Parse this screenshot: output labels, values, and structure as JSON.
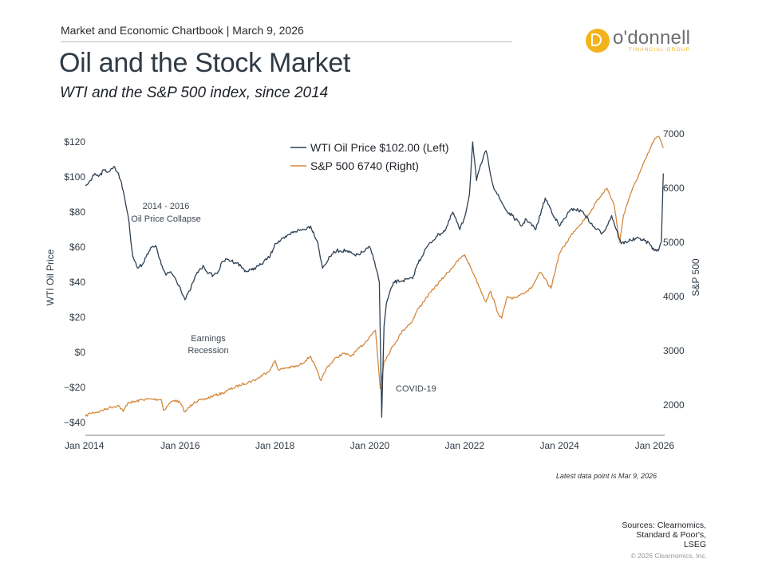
{
  "header": {
    "chartbook": "Market and Economic Chartbook | March 9, 2026",
    "title": "Oil and the Stock Market",
    "subtitle": "WTI and the S&P 500 index, since 2014"
  },
  "logo": {
    "name": "o'donnell",
    "tagline": "FINANCIAL GROUP",
    "brand_color": "#f3b31b"
  },
  "chart_data": {
    "type": "line",
    "title": "Oil and the Stock Market",
    "subtitle": "WTI and the S&P 500 index, since 2014",
    "xlabel": "",
    "x_ticks": [
      "Jan 2014",
      "Jan 2016",
      "Jan 2018",
      "Jan 2020",
      "Jan 2022",
      "Jan 2024",
      "Jan 2026"
    ],
    "x_range": [
      2014.0,
      2026.2
    ],
    "y_left": {
      "label": "WTI Oil Price",
      "ticks": [
        "$120",
        "$100",
        "$80",
        "$60",
        "$40",
        "$20",
        "$0",
        "−$20",
        "−$40"
      ],
      "tick_values": [
        120,
        100,
        80,
        60,
        40,
        20,
        0,
        -20,
        -40
      ],
      "range": [
        -40,
        120
      ]
    },
    "y_right": {
      "label": "S&P 500",
      "ticks": [
        "7000",
        "6000",
        "5000",
        "4000",
        "3000",
        "2000"
      ],
      "tick_values": [
        7000,
        6000,
        5000,
        4000,
        3000,
        2000
      ],
      "range": [
        1550,
        7000
      ]
    },
    "grid": false,
    "legend_position": "top-center",
    "series": [
      {
        "name": "WTI Oil Price $102.00 (Left)",
        "axis": "left",
        "color": "#2e4053",
        "x": [
          2014.0,
          2014.1,
          2014.2,
          2014.3,
          2014.4,
          2014.5,
          2014.6,
          2014.7,
          2014.8,
          2014.9,
          2015.0,
          2015.1,
          2015.2,
          2015.3,
          2015.4,
          2015.5,
          2015.6,
          2015.7,
          2015.8,
          2015.9,
          2016.0,
          2016.1,
          2016.2,
          2016.3,
          2016.4,
          2016.5,
          2016.6,
          2016.7,
          2016.8,
          2016.9,
          2017.0,
          2017.2,
          2017.4,
          2017.5,
          2017.7,
          2017.9,
          2018.0,
          2018.2,
          2018.4,
          2018.6,
          2018.75,
          2018.9,
          2019.0,
          2019.2,
          2019.3,
          2019.5,
          2019.7,
          2019.9,
          2020.0,
          2020.1,
          2020.2,
          2020.25,
          2020.3,
          2020.35,
          2020.5,
          2020.7,
          2020.9,
          2021.0,
          2021.2,
          2021.4,
          2021.6,
          2021.75,
          2021.9,
          2022.0,
          2022.1,
          2022.17,
          2022.25,
          2022.4,
          2022.45,
          2022.6,
          2022.75,
          2022.9,
          2023.0,
          2023.2,
          2023.3,
          2023.5,
          2023.7,
          2023.9,
          2024.0,
          2024.2,
          2024.3,
          2024.5,
          2024.7,
          2024.9,
          2025.0,
          2025.1,
          2025.3,
          2025.5,
          2025.7,
          2025.9,
          2026.0,
          2026.1,
          2026.15,
          2026.19
        ],
        "y": [
          95,
          98,
          102,
          101,
          104,
          103,
          106,
          102,
          92,
          78,
          55,
          48,
          50,
          56,
          60,
          60,
          50,
          44,
          46,
          42,
          37,
          30,
          35,
          42,
          47,
          49,
          45,
          44,
          46,
          52,
          53,
          51,
          46,
          47,
          50,
          55,
          62,
          65,
          69,
          70,
          72,
          63,
          48,
          56,
          58,
          58,
          55,
          58,
          60,
          52,
          40,
          -37,
          15,
          28,
          40,
          41,
          42,
          50,
          60,
          66,
          70,
          80,
          70,
          77,
          90,
          120,
          98,
          112,
          115,
          95,
          87,
          80,
          78,
          72,
          76,
          70,
          88,
          77,
          72,
          80,
          82,
          80,
          72,
          68,
          72,
          78,
          62,
          64,
          65,
          62,
          58,
          59,
          63,
          102
        ]
      },
      {
        "name": "S&P 500 6740 (Right)",
        "axis": "right",
        "color": "#d4893d",
        "x": [
          2014.0,
          2014.1,
          2014.3,
          2014.5,
          2014.7,
          2014.8,
          2014.9,
          2015.0,
          2015.2,
          2015.4,
          2015.6,
          2015.65,
          2015.8,
          2015.9,
          2016.0,
          2016.1,
          2016.3,
          2016.5,
          2016.7,
          2016.9,
          2017.0,
          2017.3,
          2017.6,
          2017.9,
          2018.0,
          2018.08,
          2018.2,
          2018.5,
          2018.75,
          2018.97,
          2019.1,
          2019.3,
          2019.45,
          2019.6,
          2019.9,
          2020.0,
          2020.12,
          2020.22,
          2020.3,
          2020.5,
          2020.7,
          2020.9,
          2021.0,
          2021.3,
          2021.6,
          2021.9,
          2022.0,
          2022.2,
          2022.45,
          2022.55,
          2022.7,
          2022.78,
          2022.9,
          2023.0,
          2023.2,
          2023.4,
          2023.6,
          2023.82,
          2024.0,
          2024.3,
          2024.6,
          2024.9,
          2025.0,
          2025.15,
          2025.27,
          2025.35,
          2025.5,
          2025.7,
          2025.9,
          2026.0,
          2026.1,
          2026.19
        ],
        "y": [
          1790,
          1850,
          1880,
          1950,
          1990,
          1880,
          2050,
          2050,
          2100,
          2110,
          2100,
          1900,
          2050,
          2090,
          2040,
          1870,
          2060,
          2100,
          2170,
          2220,
          2270,
          2380,
          2470,
          2650,
          2820,
          2640,
          2680,
          2720,
          2900,
          2450,
          2700,
          2880,
          2950,
          2900,
          3150,
          3270,
          3380,
          2300,
          2800,
          3100,
          3380,
          3550,
          3750,
          4100,
          4400,
          4700,
          4770,
          4400,
          3900,
          4100,
          3700,
          3600,
          4000,
          3950,
          4050,
          4150,
          4450,
          4150,
          4800,
          5200,
          5500,
          5900,
          6000,
          5700,
          5000,
          5500,
          5900,
          6300,
          6700,
          6900,
          6950,
          6740
        ]
      }
    ],
    "annotations": [
      {
        "text": [
          "2014 - 2016",
          "Oil Price Collapse"
        ]
      },
      {
        "text": [
          "Earnings",
          "Recession"
        ]
      },
      {
        "text": [
          "COVID-19"
        ]
      }
    ]
  },
  "footer": {
    "latest": "Latest data point is Mar 9, 2026",
    "sources": [
      "Sources: Clearnomics,",
      "Standard & Poor's,",
      "LSEG"
    ],
    "copyright": "© 2026 Clearnomics, Inc."
  }
}
